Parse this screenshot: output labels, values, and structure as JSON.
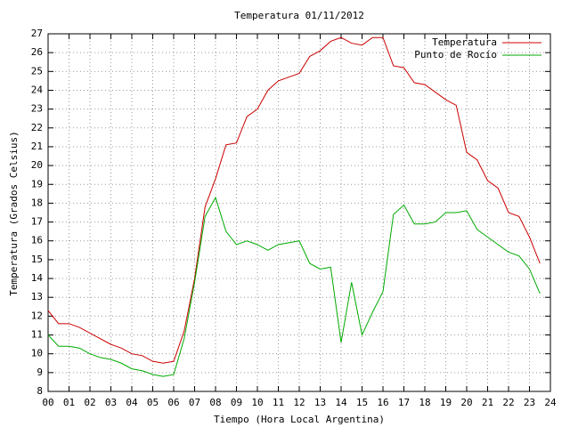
{
  "chart_data": {
    "type": "line",
    "title": "Temperatura 01/11/2012",
    "x_label": "Tiempo (Hora Local Argentina)",
    "y_label": "Temperatura (Grados Celsius)",
    "x": [
      0,
      0.5,
      1,
      1.5,
      2,
      2.5,
      3,
      3.5,
      4,
      4.5,
      5,
      5.5,
      6,
      6.5,
      7,
      7.5,
      8,
      8.5,
      9,
      9.5,
      10,
      10.5,
      11,
      11.5,
      12,
      12.5,
      13,
      13.5,
      14,
      14.5,
      15,
      15.5,
      16,
      16.5,
      17,
      17.5,
      18,
      18.5,
      19,
      19.5,
      20,
      20.5,
      21,
      21.5,
      22,
      22.5,
      23,
      23.5
    ],
    "series": [
      {
        "name": "Temperatura",
        "color": "#cc0000",
        "values": [
          12.3,
          11.6,
          11.6,
          11.4,
          11.1,
          10.8,
          10.5,
          10.3,
          10.0,
          9.9,
          9.6,
          9.5,
          9.6,
          11.2,
          14.0,
          17.8,
          19.3,
          21.1,
          21.2,
          22.6,
          23.0,
          24.0,
          24.5,
          24.7,
          24.9,
          25.8,
          26.1,
          26.6,
          26.8,
          26.5,
          26.4,
          26.8,
          26.8,
          25.3,
          25.2,
          24.4,
          24.3,
          23.9,
          23.5,
          23.2,
          20.7,
          20.3,
          19.2,
          18.8,
          17.5,
          17.3,
          16.2,
          14.8
        ]
      },
      {
        "name": "Punto de Rocío",
        "color": "#00aa00",
        "values": [
          11.0,
          10.4,
          10.4,
          10.3,
          10.0,
          9.8,
          9.7,
          9.5,
          9.2,
          9.1,
          8.9,
          8.8,
          8.9,
          10.8,
          13.8,
          17.3,
          18.3,
          16.5,
          15.8,
          16.0,
          15.8,
          15.5,
          15.8,
          15.9,
          16.0,
          14.8,
          14.5,
          14.6,
          10.6,
          13.8,
          11.0,
          12.2,
          13.3,
          17.4,
          17.9,
          16.9,
          16.9,
          17.0,
          17.5,
          17.5,
          17.6,
          16.6,
          16.2,
          15.8,
          15.4,
          15.2,
          14.5,
          13.2
        ]
      }
    ],
    "xlim": [
      0,
      24
    ],
    "xticks": [
      {
        "value": 0,
        "label": "00"
      },
      {
        "value": 1,
        "label": "01"
      },
      {
        "value": 2,
        "label": "02"
      },
      {
        "value": 3,
        "label": "03"
      },
      {
        "value": 4,
        "label": "04"
      },
      {
        "value": 5,
        "label": "05"
      },
      {
        "value": 6,
        "label": "06"
      },
      {
        "value": 7,
        "label": "07"
      },
      {
        "value": 8,
        "label": "08"
      },
      {
        "value": 9,
        "label": "09"
      },
      10,
      11,
      12,
      13,
      14,
      15,
      16,
      17,
      18,
      19,
      20,
      21,
      22,
      23,
      24
    ],
    "ylim": [
      8,
      27
    ],
    "yticks": [
      8,
      9,
      10,
      11,
      12,
      13,
      14,
      15,
      16,
      17,
      18,
      19,
      20,
      21,
      22,
      23,
      24,
      25,
      26,
      27
    ],
    "grid": true,
    "legend": "top-right"
  }
}
